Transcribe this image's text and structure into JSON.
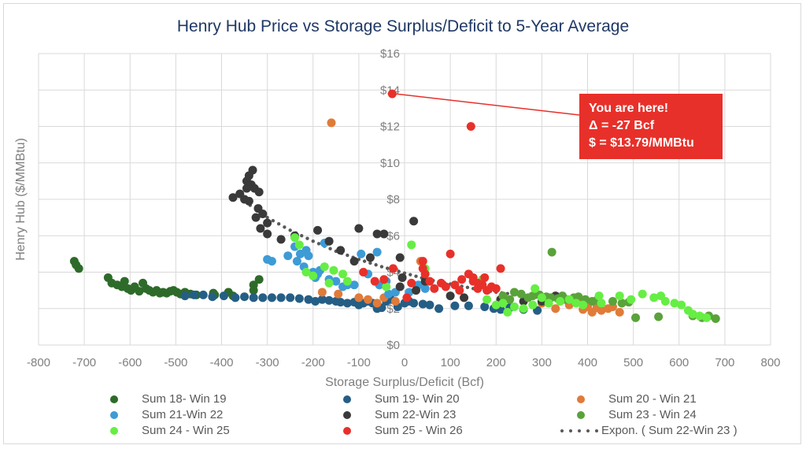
{
  "chart_data": {
    "type": "scatter",
    "title": "Henry Hub Price vs Storage Surplus/Deficit to 5-Year Average",
    "xlabel": "Storage Surplus/Deficit (Bcf)",
    "ylabel": "Henry Hub ($/MMBtu)",
    "xlim": [
      -800,
      800
    ],
    "ylim": [
      0,
      16
    ],
    "grid": true,
    "legend_position": "bottom",
    "x_ticks": [
      "-800",
      "-700",
      "-600",
      "-500",
      "-400",
      "-300",
      "-200",
      "-100",
      "0",
      "100",
      "200",
      "300",
      "400",
      "500",
      "600",
      "700",
      "800"
    ],
    "y_ticks": [
      "$0",
      "$2",
      "$4",
      "$6",
      "$8",
      "$10",
      "$12",
      "$14",
      "$16"
    ],
    "series": [
      {
        "name": "Sum 18- Win 19",
        "color": "#2e6b2a",
        "points": [
          [
            -722,
            4.6
          ],
          [
            -718,
            4.4
          ],
          [
            -712,
            4.2
          ],
          [
            -648,
            3.7
          ],
          [
            -640,
            3.4
          ],
          [
            -628,
            3.3
          ],
          [
            -618,
            3.2
          ],
          [
            -612,
            3.5
          ],
          [
            -605,
            3.1
          ],
          [
            -598,
            3.0
          ],
          [
            -590,
            3.2
          ],
          [
            -580,
            2.95
          ],
          [
            -572,
            3.4
          ],
          [
            -565,
            3.1
          ],
          [
            -558,
            3.0
          ],
          [
            -550,
            2.9
          ],
          [
            -542,
            3.0
          ],
          [
            -535,
            2.85
          ],
          [
            -528,
            2.9
          ],
          [
            -520,
            2.85
          ],
          [
            -512,
            2.95
          ],
          [
            -505,
            3.0
          ],
          [
            -498,
            2.9
          ],
          [
            -490,
            2.8
          ],
          [
            -480,
            2.9
          ],
          [
            -468,
            2.8
          ],
          [
            -455,
            2.75
          ],
          [
            -418,
            2.85
          ],
          [
            -415,
            2.75
          ],
          [
            -385,
            2.9
          ],
          [
            -375,
            2.7
          ],
          [
            -330,
            3.0
          ],
          [
            -330,
            3.3
          ],
          [
            -318,
            3.6
          ]
        ]
      },
      {
        "name": "Sum 19- Win 20",
        "color": "#255e85",
        "points": [
          [
            -480,
            2.7
          ],
          [
            -460,
            2.75
          ],
          [
            -440,
            2.75
          ],
          [
            -420,
            2.65
          ],
          [
            -395,
            2.7
          ],
          [
            -370,
            2.6
          ],
          [
            -350,
            2.65
          ],
          [
            -330,
            2.6
          ],
          [
            -310,
            2.6
          ],
          [
            -290,
            2.6
          ],
          [
            -270,
            2.6
          ],
          [
            -250,
            2.6
          ],
          [
            -230,
            2.55
          ],
          [
            -210,
            2.5
          ],
          [
            -195,
            2.4
          ],
          [
            -180,
            2.5
          ],
          [
            -165,
            2.45
          ],
          [
            -150,
            2.4
          ],
          [
            -140,
            2.35
          ],
          [
            -125,
            2.3
          ],
          [
            -110,
            2.35
          ],
          [
            -100,
            2.2
          ],
          [
            -90,
            2.3
          ],
          [
            -80,
            2.4
          ],
          [
            -70,
            2.3
          ],
          [
            -60,
            2.0
          ],
          [
            -50,
            2.05
          ],
          [
            -40,
            2.4
          ],
          [
            -30,
            2.5
          ],
          [
            -15,
            2.1
          ],
          [
            0,
            2.3
          ],
          [
            10,
            2.4
          ],
          [
            20,
            2.3
          ],
          [
            40,
            2.25
          ],
          [
            55,
            2.2
          ],
          [
            75,
            2.0
          ],
          [
            110,
            2.15
          ],
          [
            140,
            2.15
          ],
          [
            175,
            2.1
          ],
          [
            195,
            2.0
          ],
          [
            210,
            1.95
          ],
          [
            230,
            2.05
          ],
          [
            260,
            1.95
          ],
          [
            290,
            1.9
          ]
        ]
      },
      {
        "name": "Sum 20 - Win 21",
        "color": "#e07b39",
        "points": [
          [
            -160,
            12.2
          ],
          [
            -180,
            2.9
          ],
          [
            -145,
            2.8
          ],
          [
            -100,
            2.6
          ],
          [
            -80,
            2.5
          ],
          [
            -60,
            2.3
          ],
          [
            -45,
            2.6
          ],
          [
            -20,
            2.4
          ],
          [
            35,
            4.6
          ],
          [
            300,
            2.3
          ],
          [
            330,
            2.0
          ],
          [
            360,
            2.2
          ],
          [
            390,
            1.95
          ],
          [
            400,
            2.1
          ],
          [
            410,
            1.8
          ],
          [
            420,
            2.05
          ],
          [
            430,
            1.9
          ],
          [
            445,
            2.0
          ],
          [
            455,
            2.1
          ],
          [
            470,
            1.8
          ],
          [
            390,
            2.4
          ],
          [
            350,
            2.5
          ]
        ]
      },
      {
        "name": "Sum 21-Win 22",
        "color": "#3d9bd6",
        "points": [
          [
            -290,
            4.6
          ],
          [
            -300,
            4.7
          ],
          [
            -255,
            4.9
          ],
          [
            -240,
            5.4
          ],
          [
            -235,
            4.6
          ],
          [
            -228,
            5.0
          ],
          [
            -220,
            4.3
          ],
          [
            -215,
            5.2
          ],
          [
            -210,
            4.9
          ],
          [
            -200,
            4.0
          ],
          [
            -195,
            3.7
          ],
          [
            -190,
            3.9
          ],
          [
            -185,
            4.1
          ],
          [
            -175,
            5.6
          ],
          [
            -165,
            3.6
          ],
          [
            -150,
            3.5
          ],
          [
            -135,
            3.2
          ],
          [
            -125,
            3.3
          ],
          [
            -110,
            3.3
          ],
          [
            -95,
            5.0
          ],
          [
            -80,
            3.9
          ],
          [
            -60,
            5.1
          ],
          [
            -55,
            3.3
          ],
          [
            -40,
            3.5
          ],
          [
            -35,
            2.8
          ],
          [
            -20,
            2.9
          ],
          [
            10,
            2.9
          ],
          [
            30,
            3.3
          ],
          [
            45,
            3.1
          ]
        ]
      },
      {
        "name": "Sum 22-Win 23",
        "color": "#3a3a3a",
        "points": [
          [
            -332,
            9.6
          ],
          [
            -340,
            9.3
          ],
          [
            -345,
            9.0
          ],
          [
            -335,
            8.8
          ],
          [
            -328,
            8.6
          ],
          [
            -345,
            8.6
          ],
          [
            -318,
            8.4
          ],
          [
            -360,
            8.3
          ],
          [
            -375,
            8.1
          ],
          [
            -350,
            8.0
          ],
          [
            -340,
            7.9
          ],
          [
            -320,
            7.5
          ],
          [
            -310,
            7.2
          ],
          [
            -325,
            7.0
          ],
          [
            -300,
            6.7
          ],
          [
            -315,
            6.4
          ],
          [
            -300,
            6.1
          ],
          [
            -270,
            5.8
          ],
          [
            -240,
            6.0
          ],
          [
            -190,
            6.3
          ],
          [
            -165,
            5.7
          ],
          [
            -140,
            5.2
          ],
          [
            -110,
            4.6
          ],
          [
            -100,
            6.4
          ],
          [
            -75,
            4.8
          ],
          [
            -60,
            6.1
          ],
          [
            -45,
            6.1
          ],
          [
            -10,
            4.8
          ],
          [
            -5,
            3.7
          ],
          [
            -10,
            3.2
          ],
          [
            20,
            6.8
          ],
          [
            25,
            3.0
          ],
          [
            45,
            3.5
          ],
          [
            100,
            2.7
          ],
          [
            130,
            2.6
          ],
          [
            210,
            2.5
          ],
          [
            260,
            2.4
          ],
          [
            300,
            2.4
          ],
          [
            330,
            2.7
          ]
        ]
      },
      {
        "name": "Sum 23 - Win 24",
        "color": "#5aa23a",
        "points": [
          [
            322,
            5.1
          ],
          [
            240,
            2.9
          ],
          [
            255,
            2.8
          ],
          [
            270,
            2.6
          ],
          [
            280,
            2.7
          ],
          [
            295,
            2.75
          ],
          [
            310,
            2.65
          ],
          [
            320,
            2.6
          ],
          [
            335,
            2.55
          ],
          [
            345,
            2.7
          ],
          [
            355,
            2.5
          ],
          [
            370,
            2.6
          ],
          [
            380,
            2.65
          ],
          [
            395,
            2.5
          ],
          [
            410,
            2.4
          ],
          [
            420,
            2.45
          ],
          [
            430,
            2.3
          ],
          [
            455,
            2.4
          ],
          [
            475,
            2.3
          ],
          [
            490,
            2.35
          ],
          [
            505,
            1.5
          ],
          [
            555,
            1.55
          ],
          [
            630,
            1.6
          ],
          [
            665,
            1.6
          ],
          [
            680,
            1.45
          ],
          [
            650,
            1.5
          ],
          [
            215,
            2.7
          ],
          [
            230,
            2.5
          ]
        ]
      },
      {
        "name": "Sum 24 - Win 25",
        "color": "#66ee44",
        "points": [
          [
            -240,
            5.9
          ],
          [
            -230,
            5.5
          ],
          [
            -215,
            4.0
          ],
          [
            -200,
            3.8
          ],
          [
            -165,
            3.4
          ],
          [
            -175,
            4.3
          ],
          [
            -155,
            4.1
          ],
          [
            -135,
            3.9
          ],
          [
            -125,
            3.5
          ],
          [
            -40,
            3.2
          ],
          [
            15,
            5.5
          ],
          [
            45,
            4.2
          ],
          [
            170,
            3.6
          ],
          [
            180,
            2.5
          ],
          [
            200,
            2.2
          ],
          [
            215,
            2.3
          ],
          [
            225,
            1.8
          ],
          [
            240,
            2.1
          ],
          [
            260,
            2.0
          ],
          [
            280,
            2.2
          ],
          [
            285,
            3.1
          ],
          [
            300,
            2.6
          ],
          [
            315,
            2.3
          ],
          [
            340,
            2.4
          ],
          [
            360,
            2.5
          ],
          [
            375,
            2.3
          ],
          [
            390,
            2.2
          ],
          [
            425,
            2.7
          ],
          [
            430,
            2.3
          ],
          [
            470,
            2.7
          ],
          [
            495,
            2.5
          ],
          [
            520,
            2.8
          ],
          [
            545,
            2.6
          ],
          [
            560,
            2.7
          ],
          [
            570,
            2.4
          ],
          [
            590,
            2.3
          ],
          [
            605,
            2.2
          ],
          [
            620,
            1.9
          ],
          [
            630,
            1.7
          ],
          [
            645,
            1.6
          ],
          [
            660,
            1.5
          ]
        ]
      },
      {
        "name": "Sum 25 - Win 26",
        "color": "#e8302a",
        "points": [
          [
            -27,
            13.79
          ],
          [
            145,
            12.0
          ],
          [
            100,
            5.0
          ],
          [
            40,
            4.6
          ],
          [
            40,
            4.2
          ],
          [
            45,
            3.9
          ],
          [
            55,
            3.5
          ],
          [
            65,
            3.1
          ],
          [
            80,
            3.4
          ],
          [
            90,
            3.2
          ],
          [
            110,
            3.3
          ],
          [
            125,
            3.6
          ],
          [
            140,
            3.9
          ],
          [
            150,
            3.5
          ],
          [
            160,
            3.4
          ],
          [
            170,
            3.3
          ],
          [
            175,
            3.7
          ],
          [
            180,
            3.0
          ],
          [
            190,
            3.2
          ],
          [
            200,
            3.1
          ],
          [
            210,
            4.2
          ],
          [
            150,
            3.7
          ],
          [
            120,
            3.0
          ],
          [
            160,
            3.1
          ],
          [
            -90,
            4.0
          ],
          [
            -65,
            3.5
          ],
          [
            -45,
            3.6
          ],
          [
            -25,
            4.2
          ],
          [
            15,
            3.4
          ],
          [
            5,
            2.6
          ]
        ]
      }
    ],
    "trendline": {
      "name": "Expon. ( Sum 22-Win 23 )",
      "color": "#595959",
      "type": "exponential",
      "fit_series": "Sum 22-Win 23",
      "x_range": [
        -350,
        400
      ],
      "points": [
        [
          -350,
          7.9
        ],
        [
          -300,
          7.0
        ],
        [
          -250,
          6.3
        ],
        [
          -200,
          5.7
        ],
        [
          -150,
          5.15
        ],
        [
          -100,
          4.7
        ],
        [
          -50,
          4.3
        ],
        [
          0,
          3.95
        ],
        [
          50,
          3.6
        ],
        [
          100,
          3.35
        ],
        [
          150,
          3.1
        ],
        [
          200,
          2.9
        ],
        [
          250,
          2.75
        ],
        [
          300,
          2.6
        ],
        [
          350,
          2.45
        ],
        [
          400,
          2.35
        ]
      ]
    },
    "annotation": {
      "lines": [
        "You are here!",
        "Δ = -27 Bcf",
        "$ = $13.79/MMBtu"
      ],
      "point": [
        -27,
        13.79
      ],
      "color": "#e8302a"
    }
  }
}
